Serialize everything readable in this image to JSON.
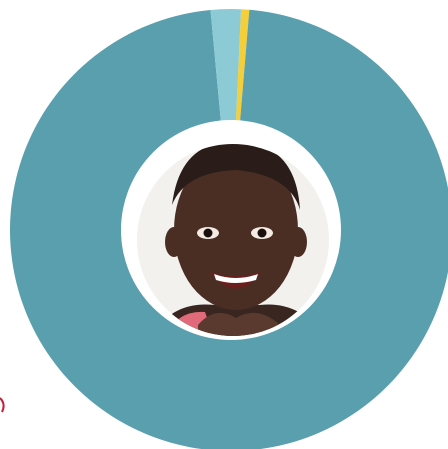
{
  "chart_data": {
    "type": "donut",
    "values": [
      0.6,
      97.2,
      2.2
    ],
    "colors": [
      "#f4cf3a",
      "#5a9fae",
      "#8ccbd5"
    ]
  }
}
